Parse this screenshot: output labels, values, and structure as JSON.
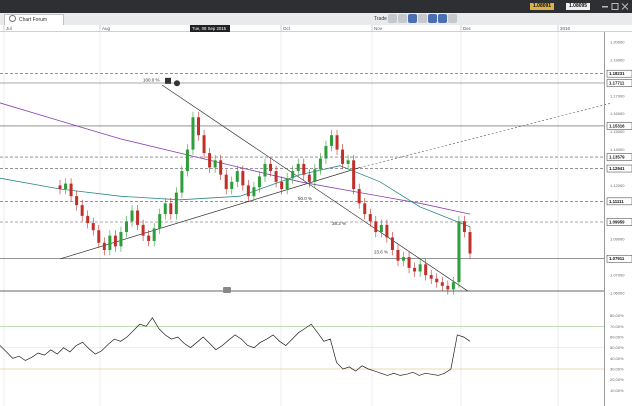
{
  "window": {
    "title": "Chart Forum",
    "bid": "1.08091",
    "ask": "1.08095"
  },
  "toolbar": {
    "trade_label": "Trade"
  },
  "crosshair_date": "Tue, 08 Sep 2015",
  "time_axis": {
    "labels": [
      "Jul",
      "Aug",
      "Oct",
      "Nov",
      "Dec",
      "2016"
    ]
  },
  "price_axis": {
    "ticks": [
      "1.20000",
      "1.19000",
      "1.17000",
      "1.16000",
      "1.15000",
      "1.14000",
      "1.13000",
      "1.12000",
      "1.11000",
      "1.10000",
      "1.09000",
      "1.08000",
      "1.07000",
      "1.06000"
    ],
    "levels": [
      {
        "value": 1.18231,
        "label": "1.18231",
        "style": "dashed"
      },
      {
        "value": 1.17711,
        "label": "1.17711",
        "style": "solid"
      },
      {
        "value": 1.15316,
        "label": "1.15316",
        "style": "box"
      },
      {
        "value": 1.13579,
        "label": "1.13579",
        "style": "dashed"
      },
      {
        "value": 1.12941,
        "label": "1.12941",
        "style": "dashed"
      },
      {
        "value": 1.11111,
        "label": "1.11111",
        "style": "dashed"
      },
      {
        "value": 1.09959,
        "label": "1.09959",
        "style": "dashed"
      },
      {
        "value": 1.07911,
        "label": "1.07911",
        "style": "solid"
      }
    ],
    "current": "1.08091"
  },
  "fib_labels": {
    "top": "100.0 %",
    "mid": "50.0 %",
    "low": "38.2 %",
    "bottom": "23.6 %"
  },
  "rsi_axis": {
    "ticks": [
      "80.00%",
      "70.00%",
      "60.00%",
      "50.00%",
      "40.00%",
      "30.00%",
      "20.00%",
      "10.00%"
    ]
  },
  "colors": {
    "bull": "#2e9d3a",
    "bear": "#c0302a",
    "ma_slow": "#8a3fb0",
    "ma_fast": "#2f8a8a",
    "rsi": "#222222",
    "topbar": "#2e2f33",
    "accent": "#4b6fb3"
  },
  "chart_data": {
    "type": "candlestick",
    "symbol": "",
    "series": [
      {
        "name": "",
        "values": [
          1.118,
          1.121,
          1.114,
          1.109,
          1.103,
          1.099,
          1.095,
          1.088,
          1.084,
          1.092,
          1.086,
          1.094,
          1.1,
          1.106,
          1.098,
          1.092,
          1.089,
          1.096,
          1.104,
          1.11,
          1.104,
          1.116,
          1.128,
          1.14,
          1.158,
          1.148,
          1.138,
          1.13,
          1.134,
          1.126,
          1.118,
          1.122,
          1.128,
          1.12,
          1.114,
          1.119,
          1.125,
          1.132,
          1.128,
          1.122,
          1.118,
          1.124,
          1.128,
          1.132,
          1.126,
          1.122,
          1.129,
          1.135,
          1.142,
          1.148,
          1.14,
          1.132,
          1.134,
          1.118,
          1.11,
          1.104,
          1.1,
          1.094,
          1.098,
          1.091,
          1.084,
          1.078,
          1.08,
          1.074,
          1.072,
          1.076,
          1.07,
          1.068,
          1.066,
          1.064,
          1.062,
          1.066,
          1.1,
          1.094,
          1.082
        ]
      }
    ],
    "rsi": [
      52,
      46,
      40,
      42,
      38,
      41,
      45,
      43,
      48,
      44,
      50,
      46,
      52,
      55,
      49,
      44,
      47,
      53,
      58,
      56,
      60,
      66,
      72,
      70,
      78,
      68,
      62,
      58,
      60,
      54,
      50,
      55,
      60,
      54,
      48,
      52,
      57,
      62,
      58,
      52,
      50,
      55,
      58,
      62,
      56,
      52,
      58,
      64,
      68,
      72,
      64,
      56,
      58,
      36,
      30,
      32,
      28,
      33,
      30,
      28,
      26,
      24,
      26,
      24,
      25,
      27,
      24,
      26,
      25,
      24,
      26,
      30,
      62,
      60,
      56
    ],
    "ylim": [
      1.06,
      1.205
    ]
  }
}
